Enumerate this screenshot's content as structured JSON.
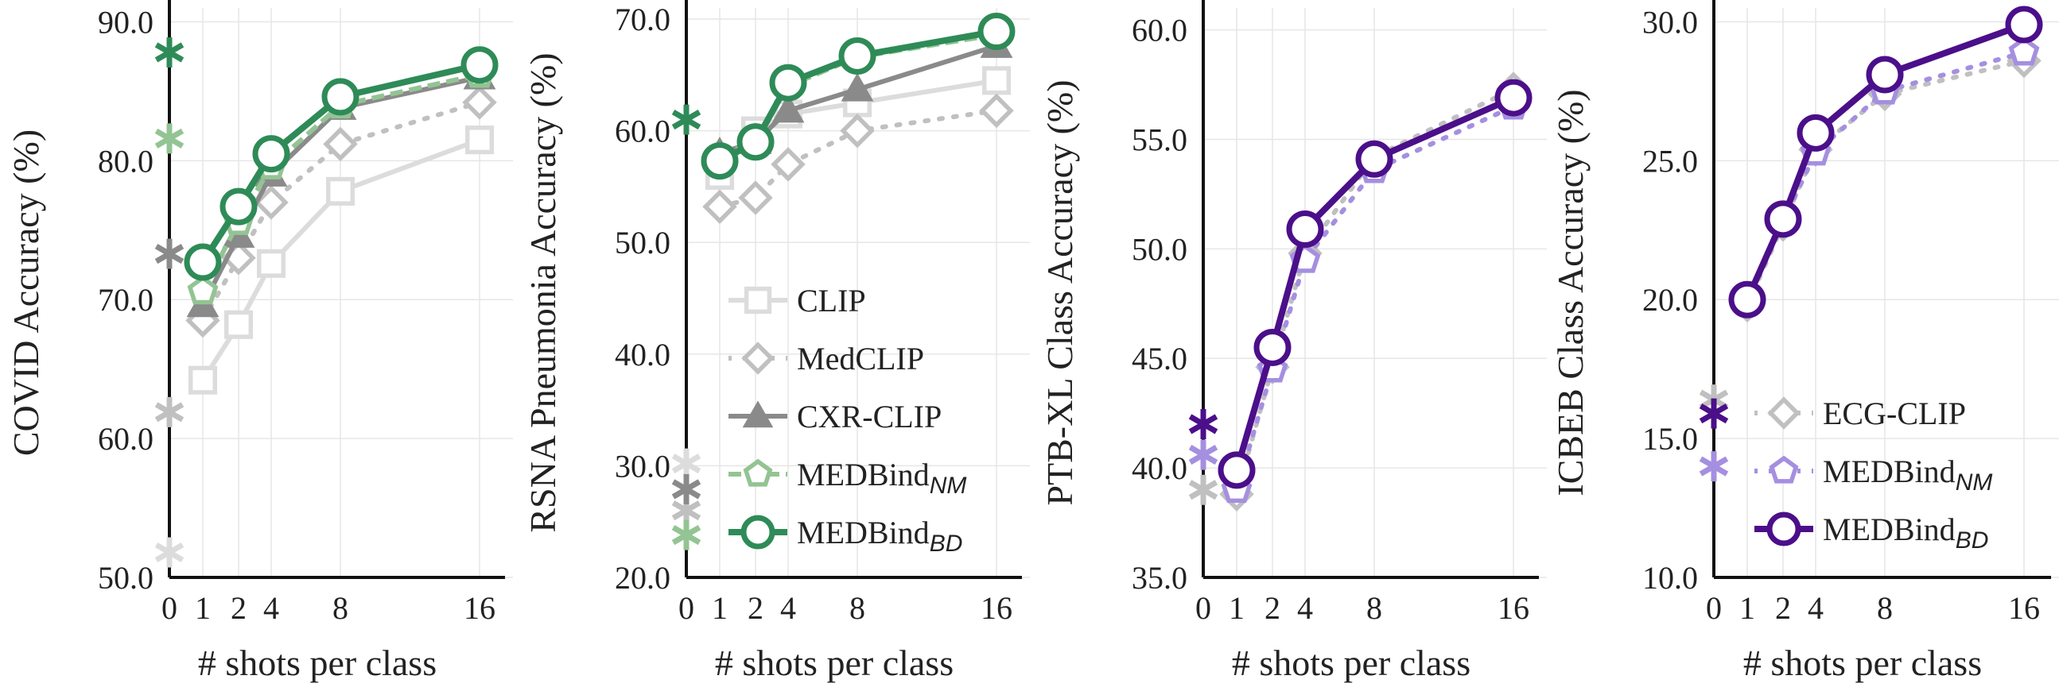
{
  "chart_data": [
    {
      "type": "line",
      "xlabel": "# shots per class",
      "ylabel": "COVID  Accuracy (%)",
      "ylim": [
        50,
        91
      ],
      "yticks": [
        "50.0",
        "60.0",
        "70.0",
        "80.0",
        "90.0"
      ],
      "xticks": [
        "0",
        "1",
        "2",
        "4",
        "8",
        "16"
      ],
      "legend": "",
      "series": [
        {
          "key": "CLIP",
          "color": "#dcdcdc",
          "marker": "square",
          "dash": "solid",
          "zero_shot": 51.8,
          "x": [
            1,
            2,
            4,
            8,
            16
          ],
          "y": [
            64.2,
            68.2,
            72.6,
            77.8,
            81.5
          ]
        },
        {
          "key": "MedCLIP",
          "color": "#c0c0c0",
          "marker": "diamond",
          "dash": "dot",
          "zero_shot": 61.9,
          "x": [
            1,
            2,
            4,
            8,
            16
          ],
          "y": [
            68.5,
            73.0,
            77.0,
            81.2,
            84.2
          ]
        },
        {
          "key": "CXR-CLIP",
          "color": "#8a8a8a",
          "marker": "triangle",
          "dash": "solid",
          "zero_shot": 73.3,
          "x": [
            1,
            2,
            4,
            8,
            16
          ],
          "y": [
            69.6,
            74.6,
            79.0,
            83.8,
            86.0
          ]
        },
        {
          "key": "MEDBind_NM",
          "color": "#93c493",
          "marker": "pentagon",
          "dash": "dash",
          "zero_shot": 81.6,
          "x": [
            1,
            2,
            4,
            8,
            16
          ],
          "y": [
            70.6,
            75.6,
            79.6,
            84.0,
            86.2
          ]
        },
        {
          "key": "MEDBind_BD",
          "color": "#2e8b57",
          "marker": "circle",
          "dash": "solid",
          "zero_shot": 87.8,
          "x": [
            1,
            2,
            4,
            8,
            16
          ],
          "y": [
            72.7,
            76.7,
            80.5,
            84.6,
            86.9
          ]
        }
      ]
    },
    {
      "type": "line",
      "xlabel": "# shots per class",
      "ylabel": "RSNA Pneumonia Accuracy (%)",
      "ylim": [
        20,
        71
      ],
      "yticks": [
        "20.0",
        "30.0",
        "40.0",
        "50.0",
        "60.0",
        "70.0"
      ],
      "xticks": [
        "0",
        "1",
        "2",
        "4",
        "8",
        "16"
      ],
      "legend": "lower-center",
      "series": [
        {
          "key": "CLIP",
          "color": "#dcdcdc",
          "marker": "square",
          "dash": "solid",
          "zero_shot": 30.2,
          "x": [
            1,
            2,
            4,
            8,
            16
          ],
          "y": [
            56.0,
            60.0,
            61.5,
            62.5,
            64.5
          ]
        },
        {
          "key": "MedCLIP",
          "color": "#c0c0c0",
          "marker": "diamond",
          "dash": "dot",
          "zero_shot": 26.0,
          "x": [
            1,
            2,
            4,
            8,
            16
          ],
          "y": [
            53.2,
            54.0,
            57.0,
            60.0,
            61.8
          ]
        },
        {
          "key": "CXR-CLIP",
          "color": "#8a8a8a",
          "marker": "triangle",
          "dash": "solid",
          "zero_shot": 27.9,
          "x": [
            1,
            2,
            4,
            8,
            16
          ],
          "y": [
            58.0,
            59.0,
            61.8,
            63.7,
            67.6
          ]
        },
        {
          "key": "MEDBind_NM",
          "color": "#93c493",
          "marker": "pentagon",
          "dash": "dash",
          "zero_shot": 23.8,
          "x": [
            1,
            2,
            4,
            8,
            16
          ],
          "y": [
            57.5,
            59.3,
            64.0,
            66.6,
            68.6
          ]
        },
        {
          "key": "MEDBind_BD",
          "color": "#2e8b57",
          "marker": "circle",
          "dash": "solid",
          "zero_shot": 61.0,
          "x": [
            1,
            2,
            4,
            8,
            16
          ],
          "y": [
            57.3,
            59.0,
            64.3,
            66.7,
            68.9
          ]
        }
      ]
    },
    {
      "type": "line",
      "xlabel": "# shots per class",
      "ylabel": "PTB-XL Class Accuracy (%)",
      "ylim": [
        35,
        61
      ],
      "yticks": [
        "35.0",
        "40.0",
        "45.0",
        "50.0",
        "55.0",
        "60.0"
      ],
      "xticks": [
        "0",
        "1",
        "2",
        "4",
        "8",
        "16"
      ],
      "legend": "",
      "series": [
        {
          "key": "ECG-CLIP",
          "color": "#c0c0c0",
          "marker": "diamond",
          "dash": "dot",
          "zero_shot": 39.0,
          "x": [
            1,
            2,
            4,
            8,
            16
          ],
          "y": [
            38.8,
            44.6,
            49.8,
            54.2,
            57.3
          ]
        },
        {
          "key": "MEDBind_NM",
          "color": "#a58fe0",
          "marker": "pentagon",
          "dash": "dot",
          "zero_shot": 40.6,
          "x": [
            1,
            2,
            4,
            8,
            16
          ],
          "y": [
            39.0,
            44.5,
            49.5,
            53.6,
            56.5
          ]
        },
        {
          "key": "MEDBind_BD",
          "color": "#4b0f8a",
          "marker": "circle",
          "dash": "solid",
          "zero_shot": 42.0,
          "x": [
            1,
            2,
            4,
            8,
            16
          ],
          "y": [
            39.9,
            45.5,
            50.9,
            54.1,
            56.9
          ]
        }
      ]
    },
    {
      "type": "line",
      "xlabel": "# shots per class",
      "ylabel": "ICBEB Class Accuracy (%)",
      "ylim": [
        10,
        30.5
      ],
      "yticks": [
        "10.0",
        "15.0",
        "20.0",
        "25.0",
        "30.0"
      ],
      "xticks": [
        "0",
        "1",
        "2",
        "4",
        "8",
        "16"
      ],
      "legend": "lower-right",
      "series": [
        {
          "key": "ECG-CLIP",
          "color": "#c0c0c0",
          "marker": "diamond",
          "dash": "dot",
          "zero_shot": 16.4,
          "x": [
            1,
            2,
            4,
            8,
            16
          ],
          "y": [
            19.8,
            22.7,
            25.4,
            27.4,
            28.6
          ]
        },
        {
          "key": "MEDBind_NM",
          "color": "#a58fe0",
          "marker": "pentagon",
          "dash": "dot",
          "zero_shot": 14.0,
          "x": [
            1,
            2,
            4,
            8,
            16
          ],
          "y": [
            19.9,
            22.8,
            25.3,
            27.5,
            28.9
          ]
        },
        {
          "key": "MEDBind_BD",
          "color": "#4b0f8a",
          "marker": "circle",
          "dash": "solid",
          "zero_shot": 15.9,
          "x": [
            1,
            2,
            4,
            8,
            16
          ],
          "y": [
            20.0,
            22.9,
            26.0,
            28.1,
            29.9
          ]
        }
      ]
    }
  ],
  "legends": {
    "chest": [
      {
        "key": "CLIP",
        "text": "CLIP",
        "sub": ""
      },
      {
        "key": "MedCLIP",
        "text": "MedCLIP",
        "sub": ""
      },
      {
        "key": "CXR-CLIP",
        "text": "CXR-CLIP",
        "sub": ""
      },
      {
        "key": "MEDBind_NM",
        "text": "MEDBind",
        "sub": "NM"
      },
      {
        "key": "MEDBind_BD",
        "text": "MEDBind",
        "sub": "BD"
      }
    ],
    "ecg": [
      {
        "key": "ECG-CLIP",
        "text": "ECG-CLIP",
        "sub": ""
      },
      {
        "key": "MEDBind_NM",
        "text": "MEDBind",
        "sub": "NM"
      },
      {
        "key": "MEDBind_BD",
        "text": "MEDBind",
        "sub": "BD"
      }
    ]
  }
}
